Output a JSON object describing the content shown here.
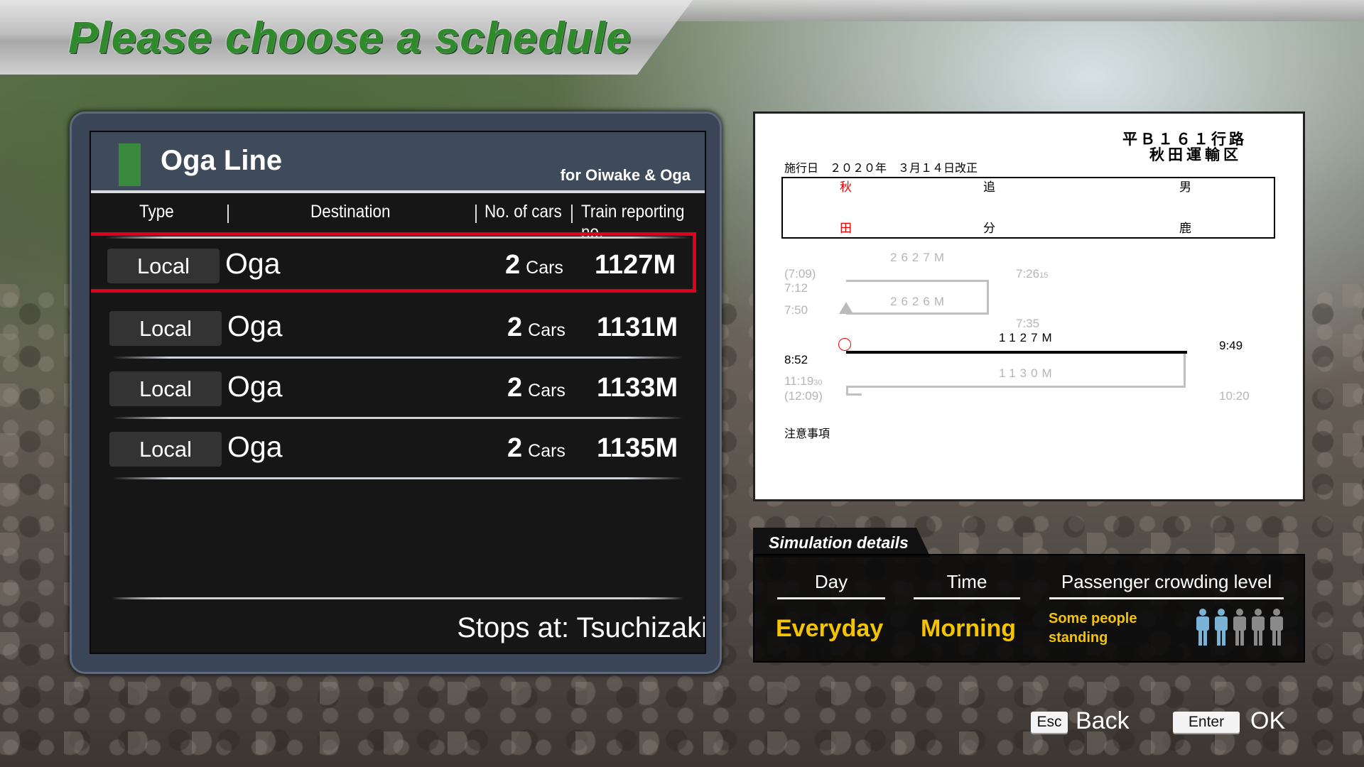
{
  "title": "Please choose a schedule",
  "line": {
    "name": "Oga Line",
    "direction": "for Oiwake & Oga",
    "color": "#3a8a3e"
  },
  "columns": {
    "type": "Type",
    "destination": "Destination",
    "cars": "No. of cars",
    "number": "Train reporting no."
  },
  "rows": [
    {
      "type": "Local",
      "destination": "Oga",
      "cars": "2",
      "cars_unit": "Cars",
      "number": "1127M",
      "selected": true
    },
    {
      "type": "Local",
      "destination": "Oga",
      "cars": "2",
      "cars_unit": "Cars",
      "number": "1131M"
    },
    {
      "type": "Local",
      "destination": "Oga",
      "cars": "2",
      "cars_unit": "Cars",
      "number": "1133M"
    },
    {
      "type": "Local",
      "destination": "Oga",
      "cars": "2",
      "cars_unit": "Cars",
      "number": "1135M"
    }
  ],
  "stops": "Stops at: Tsuchizaki",
  "timetable": {
    "route_no": "平Ｂ１６１行路",
    "depot": "秋田運輸区",
    "effective": "施行日　２０２０年　３月１４日改正",
    "stations": [
      {
        "top": "秋",
        "bottom": "田"
      },
      {
        "top": "追",
        "bottom": "分"
      },
      {
        "top": "男",
        "bottom": "鹿"
      }
    ],
    "t2627": "2627M",
    "t709": "(7:09)",
    "t712": "7:12",
    "t750": "7:50",
    "t726": "7:26",
    "t726s": "15",
    "t2626": "2626M",
    "t735": "7:35",
    "t1127": "1127M",
    "t949": "9:49",
    "t852": "8:52",
    "t1130": "1130M",
    "t1119": "11:19",
    "t1119s": "30",
    "t1209": "(12:09)",
    "t1020": "10:20",
    "notes": "注意事項"
  },
  "sim": {
    "tab": "Simulation details",
    "day_h": "Day",
    "time_h": "Time",
    "crowd_h": "Passenger crowding level",
    "day": "Everyday",
    "time": "Morning",
    "crowd": "Some people standing",
    "crowd_level": 2,
    "crowd_max": 5,
    "crowd_on": "#7ab3d6",
    "crowd_off": "#8a8a8a"
  },
  "keys": {
    "esc": "Esc",
    "back": "Back",
    "enter": "Enter",
    "ok": "OK"
  }
}
